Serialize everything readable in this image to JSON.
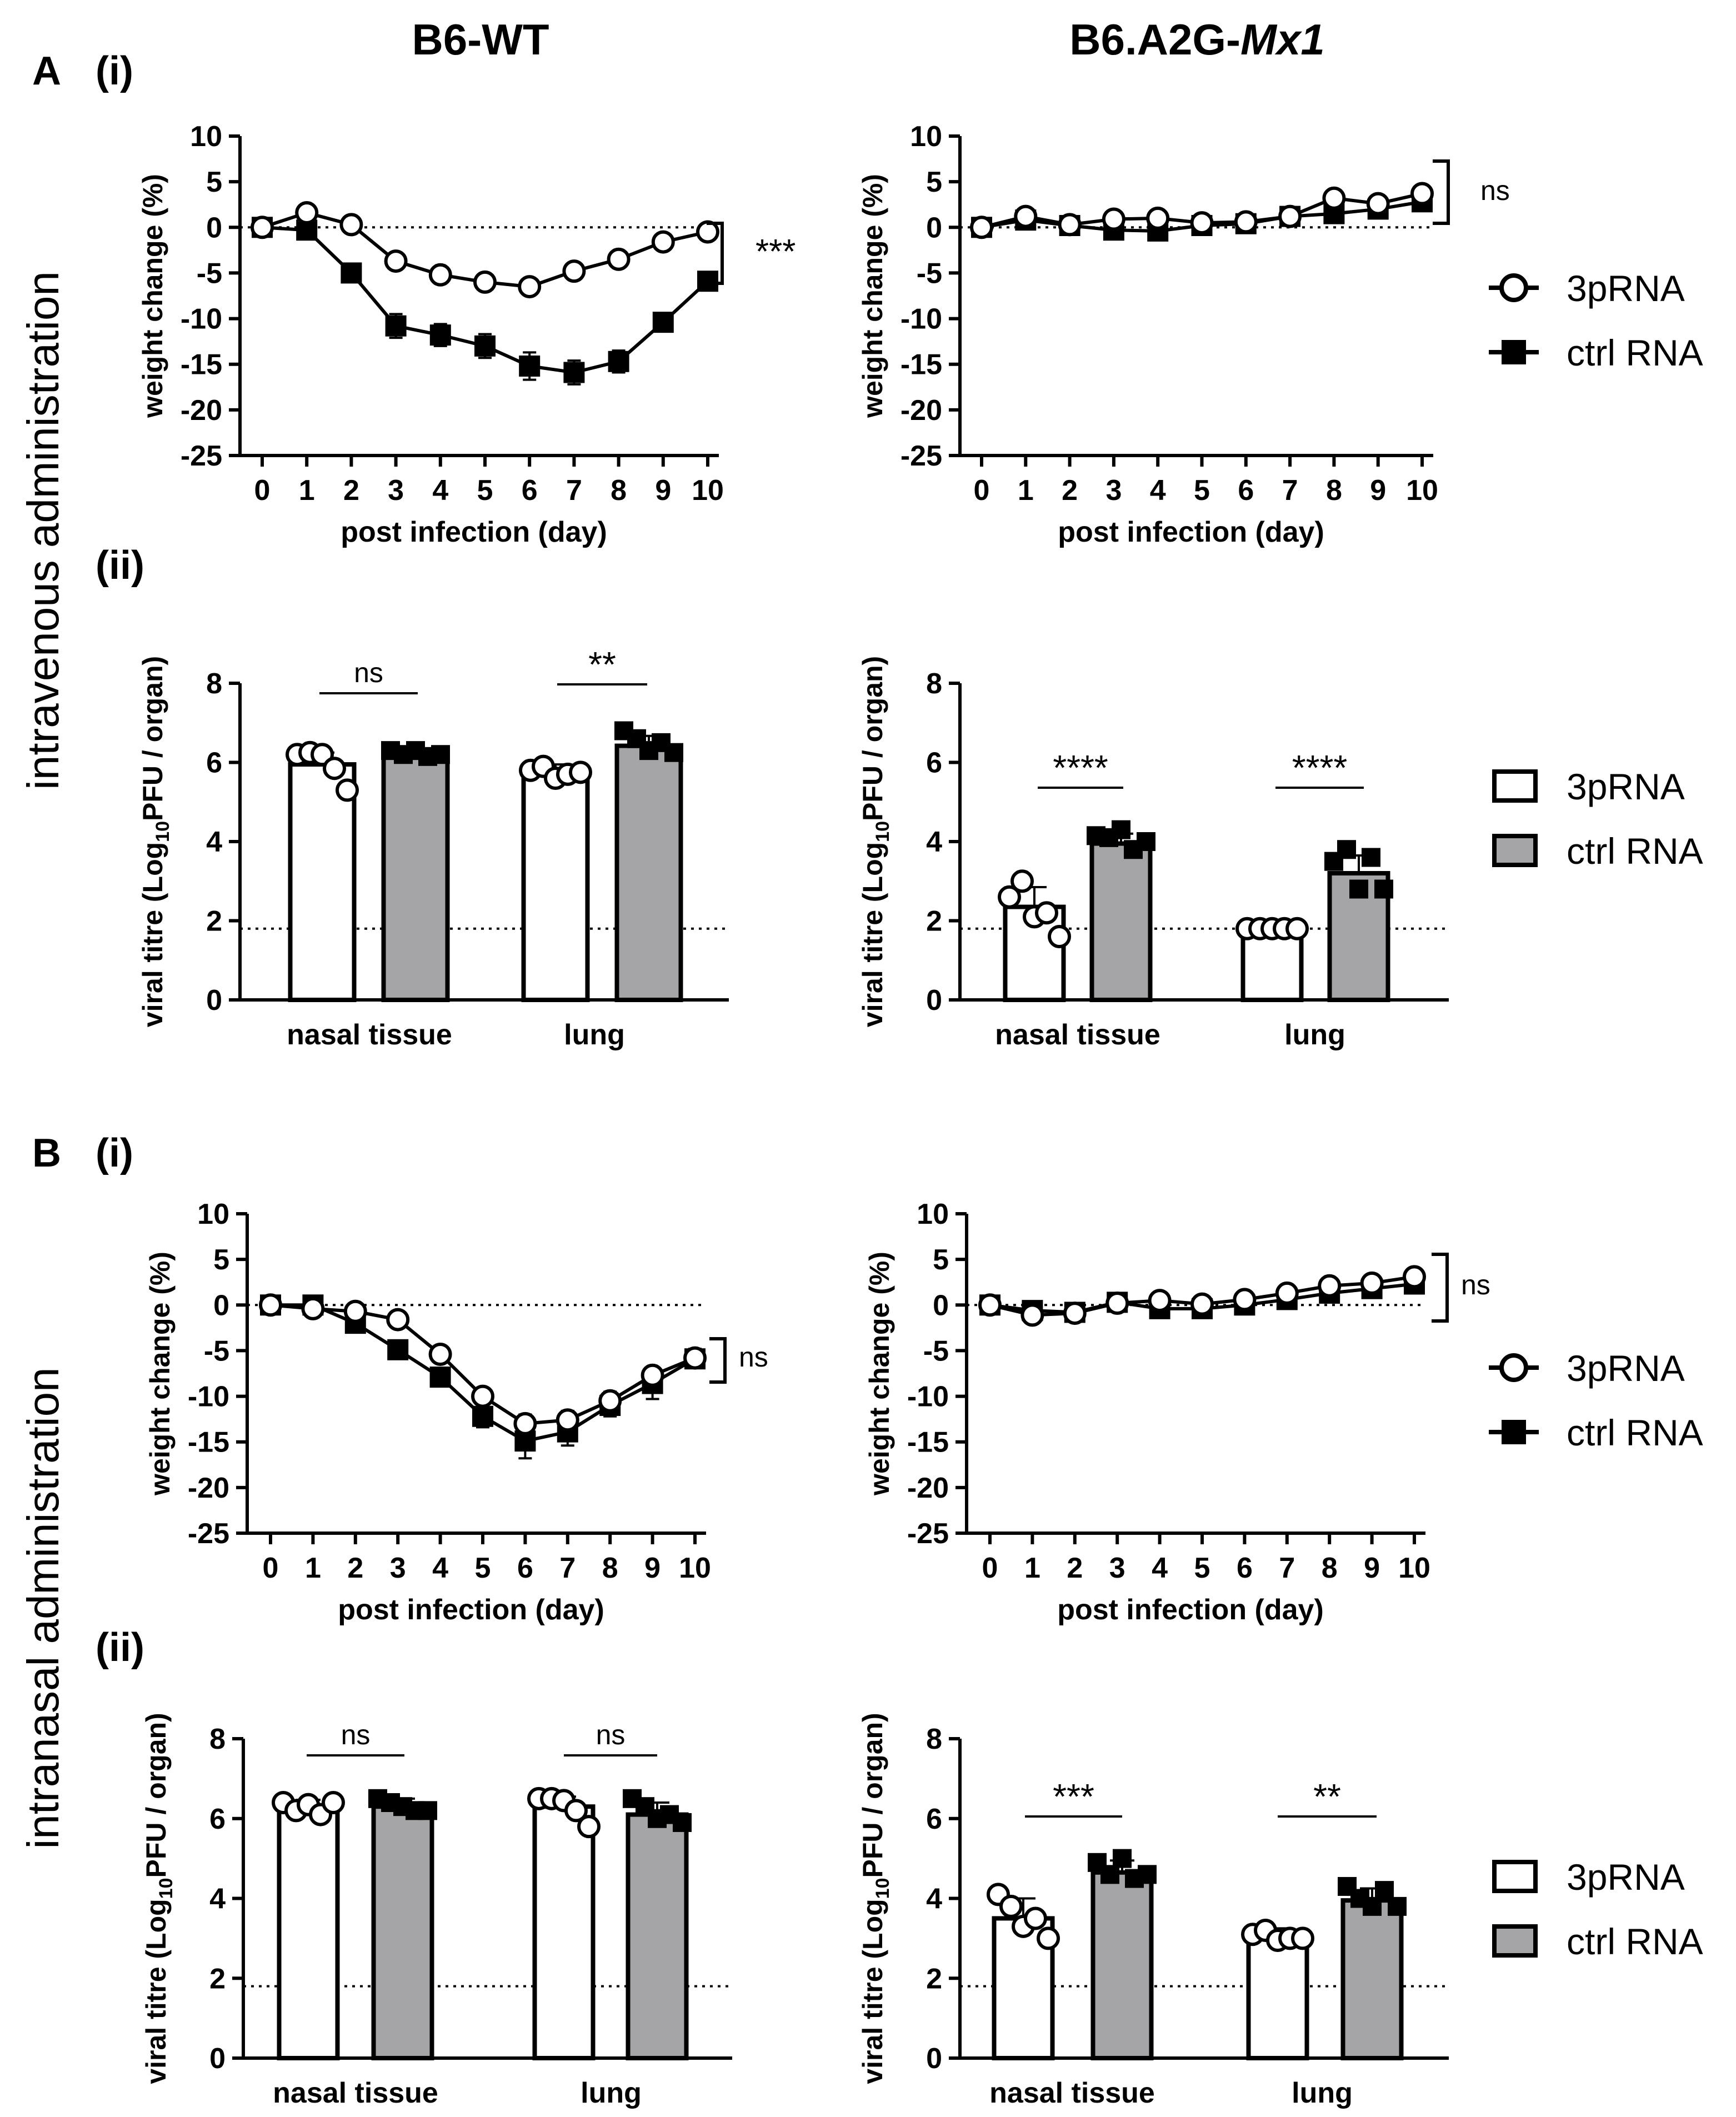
{
  "column_headers": {
    "wt": "B6-WT",
    "mx1_prefix": "B6.A2G-",
    "mx1_italic": "Mx1"
  },
  "sections": {
    "A": {
      "letter": "A",
      "row_label": "intravenous administration"
    },
    "B": {
      "letter": "B",
      "row_label": "intranasal administration"
    }
  },
  "subpanel_labels": {
    "i": "(i)",
    "ii": "(ii)"
  },
  "legend": {
    "weight": [
      {
        "name": "3pRNA",
        "marker": "open-circle"
      },
      {
        "name": "ctrl RNA",
        "marker": "filled-square"
      }
    ],
    "titre": [
      {
        "name": "3pRNA",
        "fill": "#ffffff"
      },
      {
        "name": "ctrl RNA",
        "fill": "#a5a5a7"
      }
    ]
  },
  "colors": {
    "ink": "#000000",
    "ctrl_bar": "#a5a5a7",
    "open_bar": "#ffffff"
  },
  "chart_data": [
    {
      "id": "A_i_wt",
      "type": "line",
      "title": "",
      "xlabel": "post infection (day)",
      "ylabel": "weight change (%)",
      "x": [
        0,
        1,
        2,
        3,
        4,
        5,
        6,
        7,
        8,
        9,
        10
      ],
      "xticks": [
        "0",
        "1",
        "2",
        "3",
        "4",
        "5",
        "6",
        "7",
        "8",
        "9",
        "10"
      ],
      "ylim": [
        -25,
        10
      ],
      "yticks": [
        "10",
        "5",
        "0",
        "-5",
        "-10",
        "-15",
        "-20",
        "-25"
      ],
      "reference_line_y": 0,
      "series": [
        {
          "name": "3pRNA",
          "values": [
            0,
            1.6,
            0.3,
            -3.7,
            -5.2,
            -6.0,
            -6.5,
            -4.8,
            -3.5,
            -1.6,
            -0.5
          ],
          "errors": [
            0.3,
            0.4,
            0.5,
            0.9,
            0.8,
            0.5,
            0.6,
            0.6,
            0.9,
            0.8,
            0.6
          ]
        },
        {
          "name": "ctrl RNA",
          "values": [
            0,
            -0.3,
            -5.0,
            -10.8,
            -11.8,
            -13.0,
            -15.2,
            -15.9,
            -14.7,
            -10.4,
            -5.9
          ],
          "errors": [
            0.3,
            0.3,
            0.8,
            1.3,
            1.2,
            1.3,
            1.5,
            1.3,
            1.2,
            0.9,
            0.5
          ]
        }
      ],
      "significance": "***"
    },
    {
      "id": "A_i_mx1",
      "type": "line",
      "title": "",
      "xlabel": "post infection (day)",
      "ylabel": "weight change (%)",
      "x": [
        0,
        1,
        2,
        3,
        4,
        5,
        6,
        7,
        8,
        9,
        10
      ],
      "xticks": [
        "0",
        "1",
        "2",
        "3",
        "4",
        "5",
        "6",
        "7",
        "8",
        "9",
        "10"
      ],
      "ylim": [
        -25,
        10
      ],
      "yticks": [
        "10",
        "5",
        "0",
        "-5",
        "-10",
        "-15",
        "-20",
        "-25"
      ],
      "reference_line_y": 0,
      "series": [
        {
          "name": "3pRNA",
          "values": [
            0,
            1.2,
            0.3,
            0.9,
            1.0,
            0.5,
            0.6,
            1.2,
            3.2,
            2.6,
            3.7
          ],
          "errors": [
            0.3,
            0.4,
            0.4,
            0.5,
            0.4,
            0.4,
            0.5,
            0.6,
            0.9,
            0.7,
            0.8
          ]
        },
        {
          "name": "ctrl RNA",
          "values": [
            0,
            0.8,
            0.2,
            -0.3,
            -0.4,
            0.2,
            0.4,
            1.2,
            1.5,
            2.0,
            2.8
          ],
          "errors": [
            0.3,
            0.3,
            0.3,
            0.4,
            0.4,
            0.4,
            0.4,
            0.5,
            0.5,
            0.5,
            0.6
          ]
        }
      ],
      "significance": "ns"
    },
    {
      "id": "A_ii_wt",
      "type": "bar",
      "title": "",
      "xlabel": "",
      "ylabel": "viral titre (Log10PFU / organ)",
      "ylabel_parts": [
        "viral titre (Log",
        "10",
        "PFU / organ)"
      ],
      "categories": [
        "nasal tissue",
        "lung"
      ],
      "ylim": [
        0,
        8
      ],
      "yticks": [
        "0",
        "2",
        "4",
        "6",
        "8"
      ],
      "detection_limit": 1.8,
      "series": [
        {
          "name": "3pRNA",
          "values": [
            5.95,
            5.75
          ],
          "errors": [
            0.3,
            0.2
          ],
          "points": [
            [
              6.2,
              6.25,
              6.2,
              5.85,
              5.3
            ],
            [
              5.8,
              5.9,
              5.6,
              5.7,
              5.75
            ]
          ]
        },
        {
          "name": "ctrl RNA",
          "values": [
            6.22,
            6.42
          ],
          "errors": [
            0.1,
            0.25
          ],
          "points": [
            [
              6.3,
              6.2,
              6.3,
              6.15,
              6.2
            ],
            [
              6.8,
              6.6,
              6.3,
              6.5,
              6.25
            ]
          ]
        }
      ],
      "significance": [
        "ns",
        "**"
      ]
    },
    {
      "id": "A_ii_mx1",
      "type": "bar",
      "title": "",
      "xlabel": "",
      "ylabel": "viral titre (Log10PFU / organ)",
      "ylabel_parts": [
        "viral titre (Log",
        "10",
        "PFU / organ)"
      ],
      "categories": [
        "nasal tissue",
        "lung"
      ],
      "ylim": [
        0,
        8
      ],
      "yticks": [
        "0",
        "2",
        "4",
        "6",
        "8"
      ],
      "detection_limit": 1.8,
      "series": [
        {
          "name": "3pRNA",
          "values": [
            2.35,
            1.8
          ],
          "errors": [
            0.5,
            0.0
          ],
          "points": [
            [
              2.6,
              3.0,
              2.1,
              2.2,
              1.6
            ],
            [
              1.8,
              1.8,
              1.8,
              1.8,
              1.8
            ]
          ]
        },
        {
          "name": "ctrl RNA",
          "values": [
            3.95,
            3.2
          ],
          "errors": [
            0.25,
            0.45
          ],
          "points": [
            [
              4.15,
              4.1,
              4.3,
              3.8,
              4.0
            ],
            [
              3.5,
              3.8,
              2.8,
              3.6,
              2.8
            ]
          ]
        }
      ],
      "significance": [
        "****",
        "****"
      ]
    },
    {
      "id": "B_i_wt",
      "type": "line",
      "title": "",
      "xlabel": "post infection (day)",
      "ylabel": "weight change (%)",
      "x": [
        0,
        1,
        2,
        3,
        4,
        5,
        6,
        7,
        8,
        9,
        10
      ],
      "xticks": [
        "0",
        "1",
        "2",
        "3",
        "4",
        "5",
        "6",
        "7",
        "8",
        "9",
        "10"
      ],
      "ylim": [
        -25,
        10
      ],
      "yticks": [
        "10",
        "5",
        "0",
        "-5",
        "-10",
        "-15",
        "-20",
        "-25"
      ],
      "reference_line_y": 0,
      "series": [
        {
          "name": "3pRNA",
          "values": [
            0,
            -0.4,
            -0.7,
            -1.6,
            -5.4,
            -10.0,
            -13.0,
            -12.6,
            -10.5,
            -7.7,
            -5.8
          ],
          "errors": [
            0.3,
            0.4,
            0.4,
            0.5,
            0.6,
            0.8,
            1.0,
            1.0,
            1.0,
            0.9,
            1.0
          ]
        },
        {
          "name": "ctrl RNA",
          "values": [
            0,
            0,
            -2.0,
            -4.9,
            -7.9,
            -12.2,
            -14.9,
            -13.9,
            -11.0,
            -8.6,
            -5.9
          ],
          "errors": [
            0.3,
            0.3,
            0.4,
            0.5,
            0.8,
            1.2,
            1.9,
            1.5,
            1.2,
            1.7,
            1.0
          ]
        }
      ],
      "significance": "ns"
    },
    {
      "id": "B_i_mx1",
      "type": "line",
      "title": "",
      "xlabel": "post infection (day)",
      "ylabel": "weight change (%)",
      "x": [
        0,
        1,
        2,
        3,
        4,
        5,
        6,
        7,
        8,
        9,
        10
      ],
      "xticks": [
        "0",
        "1",
        "2",
        "3",
        "4",
        "5",
        "6",
        "7",
        "8",
        "9",
        "10"
      ],
      "ylim": [
        -25,
        10
      ],
      "yticks": [
        "10",
        "5",
        "0",
        "-5",
        "-10",
        "-15",
        "-20",
        "-25"
      ],
      "reference_line_y": 0,
      "series": [
        {
          "name": "3pRNA",
          "values": [
            0,
            -1.1,
            -0.9,
            0.2,
            0.5,
            0.1,
            0.6,
            1.3,
            2.1,
            2.4,
            3.1
          ],
          "errors": [
            0.3,
            0.4,
            0.4,
            0.4,
            0.4,
            0.4,
            0.4,
            0.5,
            0.5,
            0.5,
            0.6
          ]
        },
        {
          "name": "ctrl RNA",
          "values": [
            0,
            -0.6,
            -0.8,
            0.3,
            -0.4,
            -0.4,
            0.0,
            0.6,
            1.3,
            1.8,
            2.3
          ],
          "errors": [
            0.3,
            0.3,
            0.4,
            0.4,
            0.4,
            0.4,
            0.4,
            0.4,
            0.5,
            0.5,
            0.5
          ]
        }
      ],
      "significance": "ns"
    },
    {
      "id": "B_ii_wt",
      "type": "bar",
      "title": "",
      "xlabel": "",
      "ylabel": "viral titre (Log10PFU / organ)",
      "ylabel_parts": [
        "viral titre (Log",
        "10",
        "PFU / organ)"
      ],
      "categories": [
        "nasal tissue",
        "lung"
      ],
      "ylim": [
        0,
        8
      ],
      "yticks": [
        "0",
        "2",
        "4",
        "6",
        "8"
      ],
      "detection_limit": 1.8,
      "series": [
        {
          "name": "3pRNA",
          "values": [
            6.32,
            6.3
          ],
          "errors": [
            0.15,
            0.25
          ],
          "points": [
            [
              6.4,
              6.2,
              6.35,
              6.1,
              6.4
            ],
            [
              6.5,
              6.5,
              6.45,
              6.2,
              5.8
            ]
          ]
        },
        {
          "name": "ctrl RNA",
          "values": [
            6.3,
            6.1
          ],
          "errors": [
            0.2,
            0.3
          ],
          "points": [
            [
              6.5,
              6.4,
              6.3,
              6.2,
              6.2
            ],
            [
              6.5,
              6.3,
              6.0,
              6.1,
              5.9
            ]
          ]
        }
      ],
      "significance": [
        "ns",
        "ns"
      ]
    },
    {
      "id": "B_ii_mx1",
      "type": "bar",
      "title": "",
      "xlabel": "",
      "ylabel": "viral titre (Log10PFU / organ)",
      "ylabel_parts": [
        "viral titre (Log",
        "10",
        "PFU / organ)"
      ],
      "categories": [
        "nasal tissue",
        "lung"
      ],
      "ylim": [
        0,
        8
      ],
      "yticks": [
        "0",
        "2",
        "4",
        "6",
        "8"
      ],
      "detection_limit": 1.8,
      "series": [
        {
          "name": "3pRNA",
          "values": [
            3.5,
            3.05
          ],
          "errors": [
            0.5,
            0.2
          ],
          "points": [
            [
              4.1,
              3.8,
              3.3,
              3.5,
              3.0
            ],
            [
              3.1,
              3.2,
              2.95,
              3.0,
              3.0
            ]
          ]
        },
        {
          "name": "ctrl RNA",
          "values": [
            4.65,
            3.95
          ],
          "errors": [
            0.3,
            0.3
          ],
          "points": [
            [
              4.9,
              4.6,
              5.0,
              4.5,
              4.6
            ],
            [
              4.3,
              4.0,
              3.8,
              4.2,
              3.8
            ]
          ]
        }
      ],
      "significance": [
        "***",
        "**"
      ]
    }
  ]
}
